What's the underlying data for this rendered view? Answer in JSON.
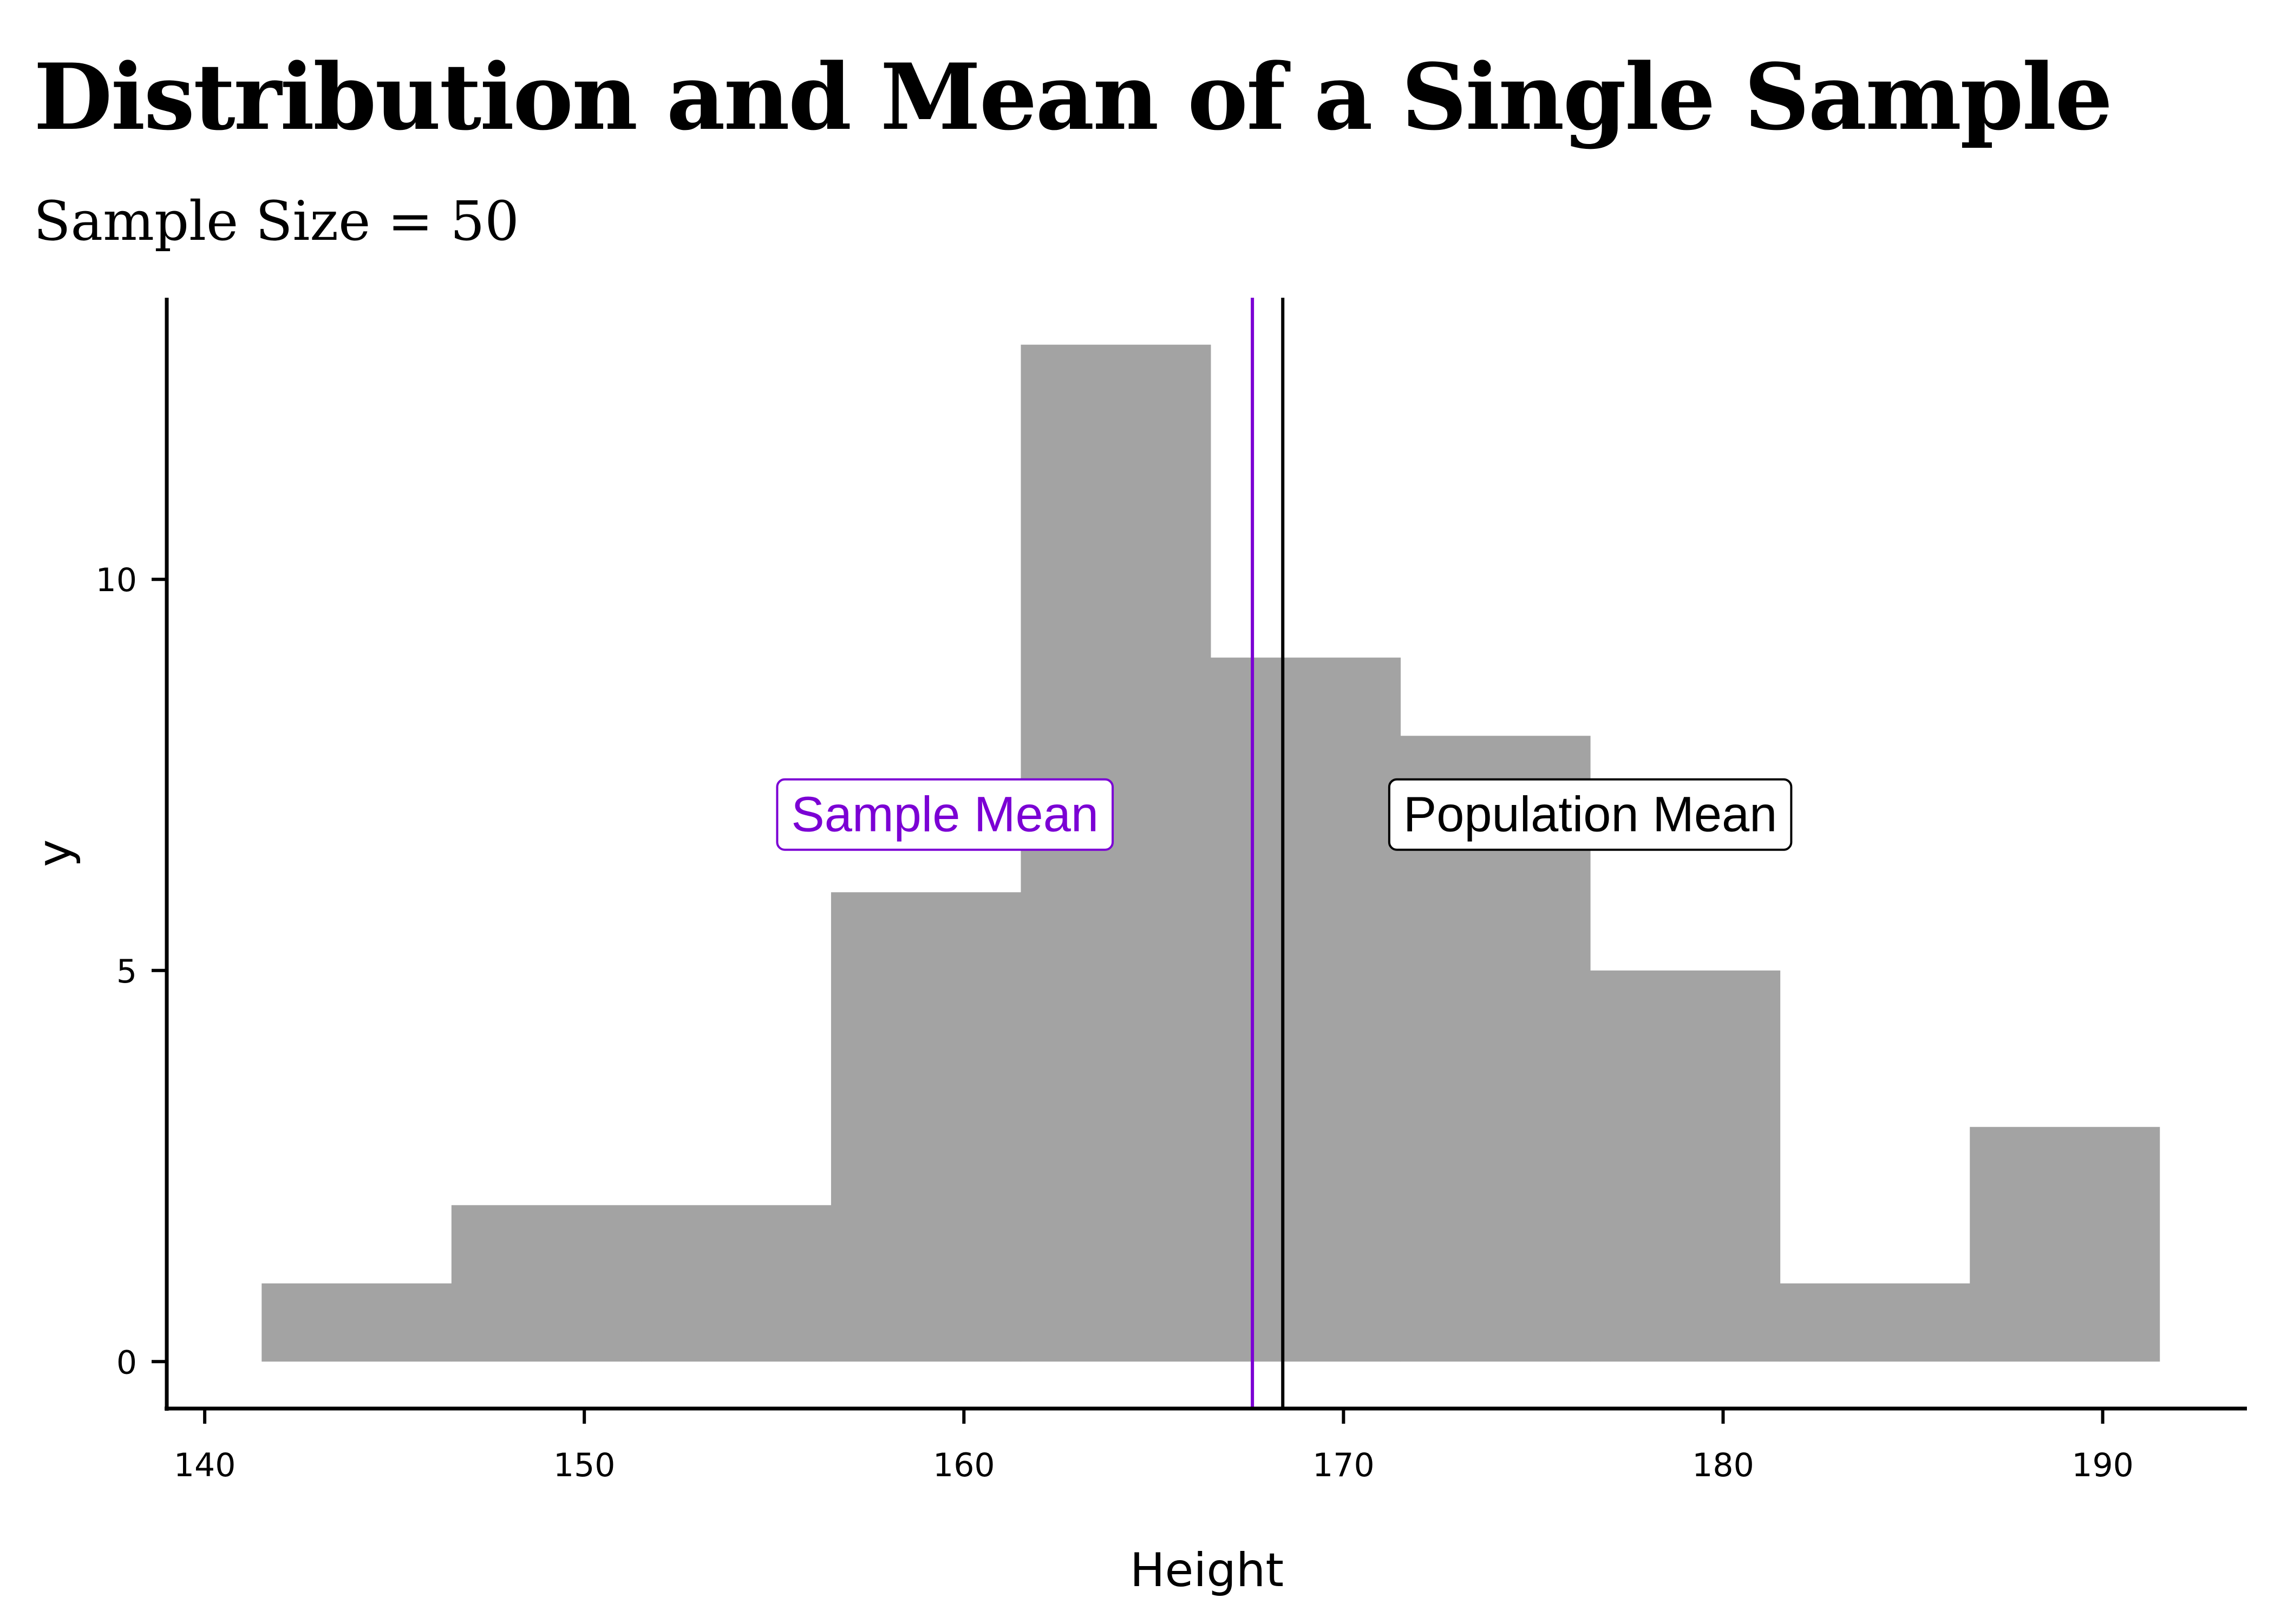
{
  "chart_data": {
    "type": "histogram",
    "title": "Distribution and Mean of a Single Sample",
    "subtitle": "Sample Size = 50",
    "xlabel": "Height",
    "ylabel": "y",
    "xlim": [
      139.0,
      193.8
    ],
    "ylim": [
      -0.6,
      13.6
    ],
    "x_ticks": [
      140,
      150,
      160,
      170,
      180,
      190
    ],
    "y_ticks": [
      0,
      5,
      10
    ],
    "bins": [
      {
        "x0": 141.5,
        "x1": 146.5,
        "count": 1
      },
      {
        "x0": 146.5,
        "x1": 151.5,
        "count": 2
      },
      {
        "x0": 151.5,
        "x1": 156.5,
        "count": 2
      },
      {
        "x0": 156.5,
        "x1": 161.5,
        "count": 6
      },
      {
        "x0": 161.5,
        "x1": 166.5,
        "count": 13
      },
      {
        "x0": 166.5,
        "x1": 171.5,
        "count": 9
      },
      {
        "x0": 171.5,
        "x1": 176.5,
        "count": 8
      },
      {
        "x0": 176.5,
        "x1": 181.5,
        "count": 5
      },
      {
        "x0": 181.5,
        "x1": 186.5,
        "count": 1
      },
      {
        "x0": 186.5,
        "x1": 191.5,
        "count": 3
      }
    ],
    "bar_color": "#a3a3a3",
    "reference_lines": [
      {
        "name": "Sample Mean",
        "x": 167.6,
        "color": "#7b00d4",
        "label_x": 159.5,
        "label_y": 7.0
      },
      {
        "name": "Population Mean",
        "x": 168.4,
        "color": "#000000",
        "label_x": 176.5,
        "label_y": 7.0
      }
    ],
    "grid": false,
    "legend": "none"
  }
}
